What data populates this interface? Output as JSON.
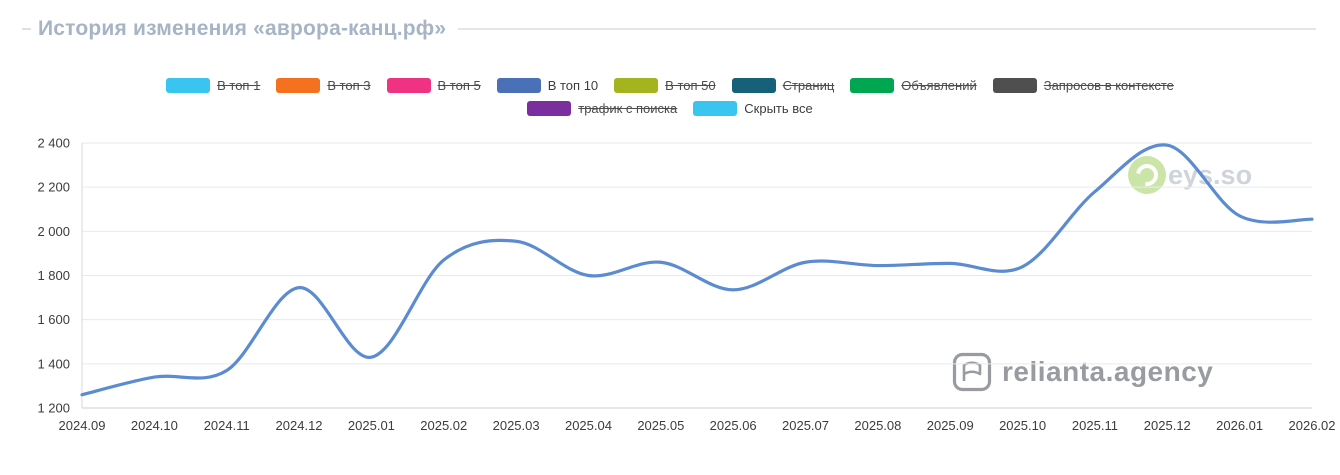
{
  "header": {
    "title": "История изменения «аврора-канц.рф»"
  },
  "legend": {
    "row1": [
      {
        "id": "top1",
        "label": "В топ 1",
        "color": "#39c5f0",
        "struck": true
      },
      {
        "id": "top3",
        "label": "В топ 3",
        "color": "#f4711f",
        "struck": true
      },
      {
        "id": "top5",
        "label": "В топ 5",
        "color": "#f03282",
        "struck": true
      },
      {
        "id": "top10",
        "label": "В топ 10",
        "color": "#4a71b8",
        "struck": false
      },
      {
        "id": "top50",
        "label": "В топ 50",
        "color": "#a3b41f",
        "struck": true
      },
      {
        "id": "pages",
        "label": "Страниц",
        "color": "#16607a",
        "struck": true
      },
      {
        "id": "ads",
        "label": "Объявлений",
        "color": "#00a650",
        "struck": true
      },
      {
        "id": "context",
        "label": "Запросов в контексте",
        "color": "#4f4f4f",
        "struck": true
      }
    ],
    "row2": [
      {
        "id": "traffic",
        "label": "трафик с поиска",
        "color": "#7b2f9e",
        "struck": true
      },
      {
        "id": "hideall",
        "label": "Скрыть все",
        "color": "#39c5f0",
        "struck": false
      }
    ]
  },
  "watermarks": {
    "keys_so_text": "eys.so",
    "relianta": "relianta.agency"
  },
  "chart_data": {
    "type": "line",
    "title": "История изменения «аврора-канц.рф»",
    "xlabel": "",
    "ylabel": "",
    "categories": [
      "2024.09",
      "2024.10",
      "2024.11",
      "2024.12",
      "2025.01",
      "2025.02",
      "2025.03",
      "2025.04",
      "2025.05",
      "2025.06",
      "2025.07",
      "2025.08",
      "2025.09",
      "2025.10",
      "2025.11",
      "2025.12",
      "2026.01",
      "2026.02"
    ],
    "series": [
      {
        "name": "В топ 10",
        "color": "#5b8bd0",
        "values": [
          1260,
          1340,
          1370,
          1745,
          1430,
          1870,
          1955,
          1800,
          1860,
          1735,
          1860,
          1845,
          1855,
          1840,
          2180,
          2390,
          2070,
          2055
        ]
      }
    ],
    "ylim": [
      1200,
      2400
    ],
    "ytick_step": 200,
    "grid": true,
    "legend_position": "top",
    "line_style": "smooth"
  }
}
